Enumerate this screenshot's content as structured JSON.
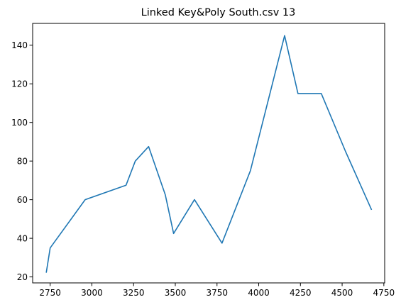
{
  "chart_data": {
    "type": "line",
    "title": "Linked Key&Poly South.csv 13",
    "xlabel": "",
    "ylabel": "",
    "xlim": [
      2645,
      4755
    ],
    "ylim": [
      16.9,
      151.3
    ],
    "grid": false,
    "xticks": [
      2750,
      3000,
      3250,
      3500,
      3750,
      4000,
      4250,
      4500,
      4750
    ],
    "yticks": [
      20,
      40,
      60,
      80,
      100,
      120,
      140
    ],
    "series": [
      {
        "color": "#1f77b4",
        "x": [
          2727,
          2750,
          2960,
          3205,
          3260,
          3340,
          3440,
          3490,
          3615,
          3780,
          3950,
          4155,
          4235,
          4375,
          4520,
          4675
        ],
        "y": [
          22.5,
          35,
          60,
          67.5,
          80,
          87.5,
          62.5,
          42.5,
          60,
          37.5,
          75,
          145,
          115,
          115,
          85,
          55
        ]
      }
    ]
  }
}
